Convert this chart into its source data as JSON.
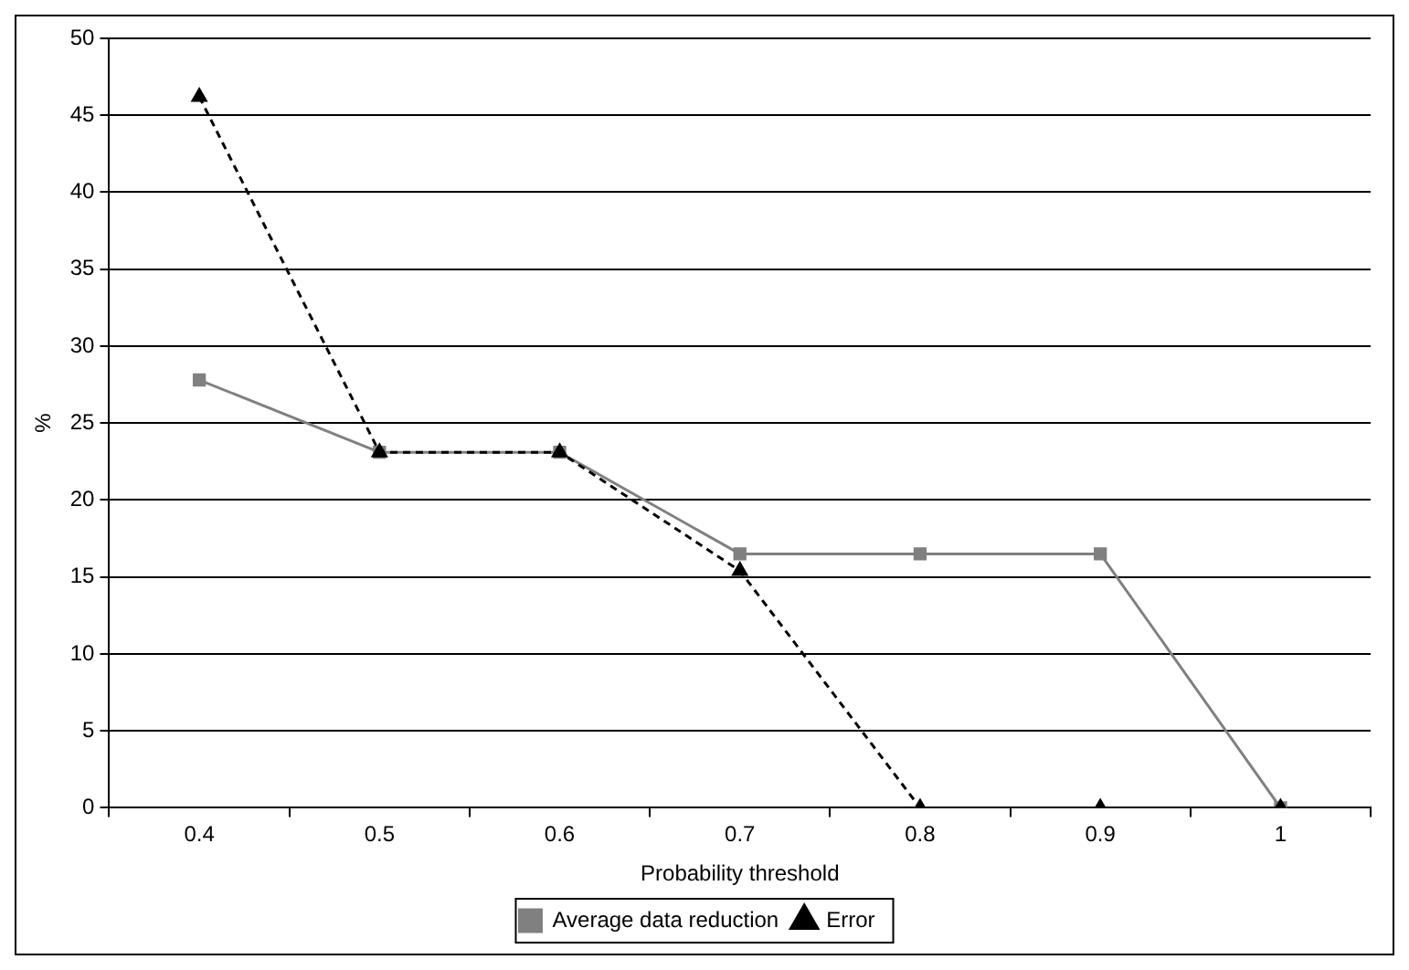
{
  "chart_data": {
    "type": "line",
    "xlabel": "Probability threshold",
    "ylabel": "%",
    "categories": [
      "0.4",
      "0.5",
      "0.6",
      "0.7",
      "0.8",
      "0.9",
      "1"
    ],
    "series": [
      {
        "name": "Average data reduction",
        "color": "#808080",
        "values": [
          27.8,
          23.1,
          23.1,
          16.5,
          16.5,
          16.5,
          0
        ],
        "marker": "square",
        "line_style": "solid"
      },
      {
        "name": "Error",
        "color": "#000000",
        "values": [
          46.2,
          23.1,
          23.1,
          15.4,
          0,
          0,
          0
        ],
        "marker": "triangle",
        "line_style": "dashed"
      }
    ],
    "ylim": [
      0,
      50
    ],
    "yticks": [
      0,
      5,
      10,
      15,
      20,
      25,
      30,
      35,
      40,
      45,
      50
    ],
    "grid": "y",
    "legend": "bottom"
  }
}
